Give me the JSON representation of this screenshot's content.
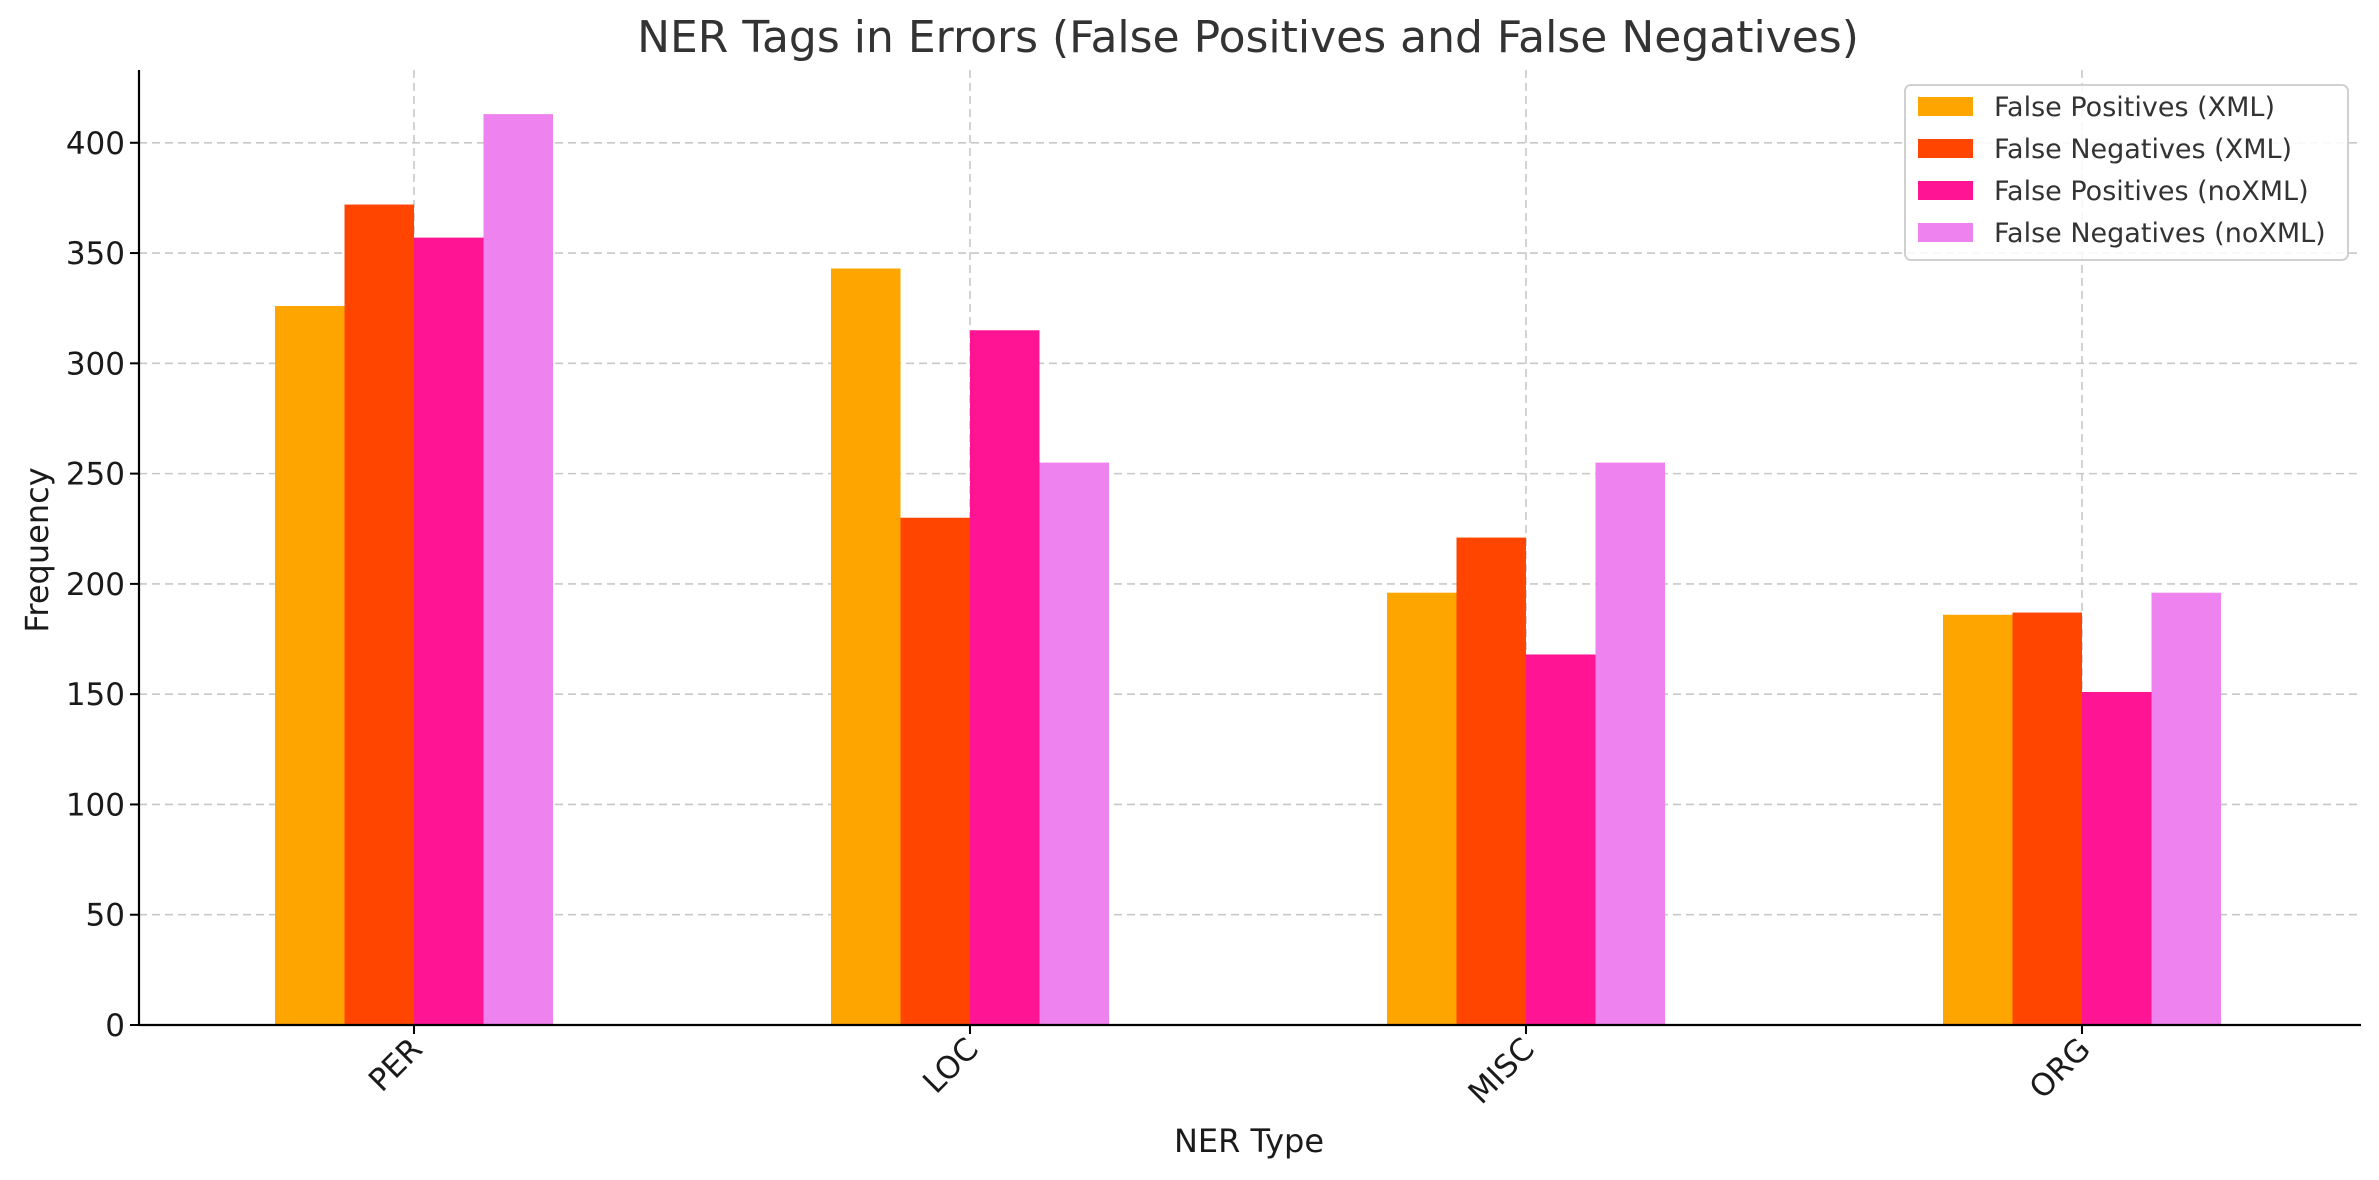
{
  "chart_data": {
    "type": "bar",
    "title": "NER Tags in Errors (False Positives and False Negatives)",
    "xlabel": "NER Type",
    "ylabel": "Frequency",
    "categories": [
      "PER",
      "LOC",
      "MISC",
      "ORG"
    ],
    "ylim": [
      0,
      433
    ],
    "yticks": [
      0,
      50,
      100,
      150,
      200,
      250,
      300,
      350,
      400
    ],
    "grid": true,
    "legend_position": "top-right",
    "series": [
      {
        "name": "False Positives (XML)",
        "color": "#FFA500",
        "values": [
          326,
          343,
          196,
          186
        ]
      },
      {
        "name": "False Negatives (XML)",
        "color": "#FF4500",
        "values": [
          372,
          230,
          221,
          187
        ]
      },
      {
        "name": "False Positives (noXML)",
        "color": "#FF1493",
        "values": [
          357,
          315,
          168,
          151
        ]
      },
      {
        "name": "False Negatives (noXML)",
        "color": "#EE82EE",
        "values": [
          413,
          255,
          255,
          196
        ]
      }
    ]
  }
}
